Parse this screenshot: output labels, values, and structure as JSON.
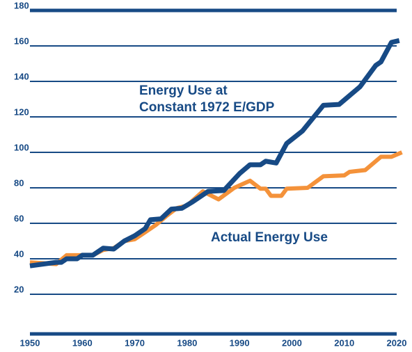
{
  "chart_data": {
    "type": "line",
    "xlim": [
      1950,
      2020
    ],
    "xticks": [
      1950,
      1960,
      1970,
      1980,
      1990,
      2000,
      2010,
      2020
    ],
    "ylim": [
      0,
      180
    ],
    "yticks": [
      20,
      40,
      60,
      80,
      100,
      120,
      140,
      160,
      180
    ],
    "grid": true,
    "series": [
      {
        "name": "Actual Energy Use",
        "color": "#f4923a",
        "x": [
          1950,
          1955,
          1957,
          1962,
          1964,
          1966,
          1968,
          1970,
          1972,
          1974,
          1976,
          1978,
          1980,
          1983,
          1986,
          1989,
          1992,
          1994,
          1995,
          1996,
          1998,
          1999,
          2003,
          2006,
          2010,
          2011,
          2014,
          2017,
          2019,
          2021
        ],
        "values": [
          38,
          37,
          42,
          42,
          45,
          46,
          50,
          51,
          55,
          59,
          64,
          68.5,
          70,
          78,
          73.5,
          80,
          84,
          79.5,
          79.5,
          75.5,
          75.5,
          79.5,
          80,
          86.5,
          87,
          89,
          90,
          97.5,
          97.5,
          100
        ]
      },
      {
        "name": "Energy Use at\nConstant 1972 E/GDP",
        "color": "#174a85",
        "x": [
          1950,
          1955,
          1956,
          1957,
          1959,
          1960,
          1962,
          1964,
          1966,
          1968,
          1970,
          1972,
          1973,
          1975,
          1977,
          1979,
          1981,
          1984,
          1987,
          1990,
          1992,
          1994,
          1995,
          1997,
          1999,
          2002,
          2006,
          2009,
          2011,
          2013,
          2016,
          2017,
          2019,
          2020.5
        ],
        "values": [
          36,
          38,
          38,
          40,
          40,
          42,
          42,
          46,
          45.5,
          50,
          53,
          57,
          62,
          62.5,
          68,
          68.5,
          72,
          78,
          78.5,
          88,
          93,
          93,
          95,
          94,
          105,
          112,
          126.5,
          127,
          132,
          137,
          149,
          151,
          162,
          163
        ]
      }
    ]
  }
}
